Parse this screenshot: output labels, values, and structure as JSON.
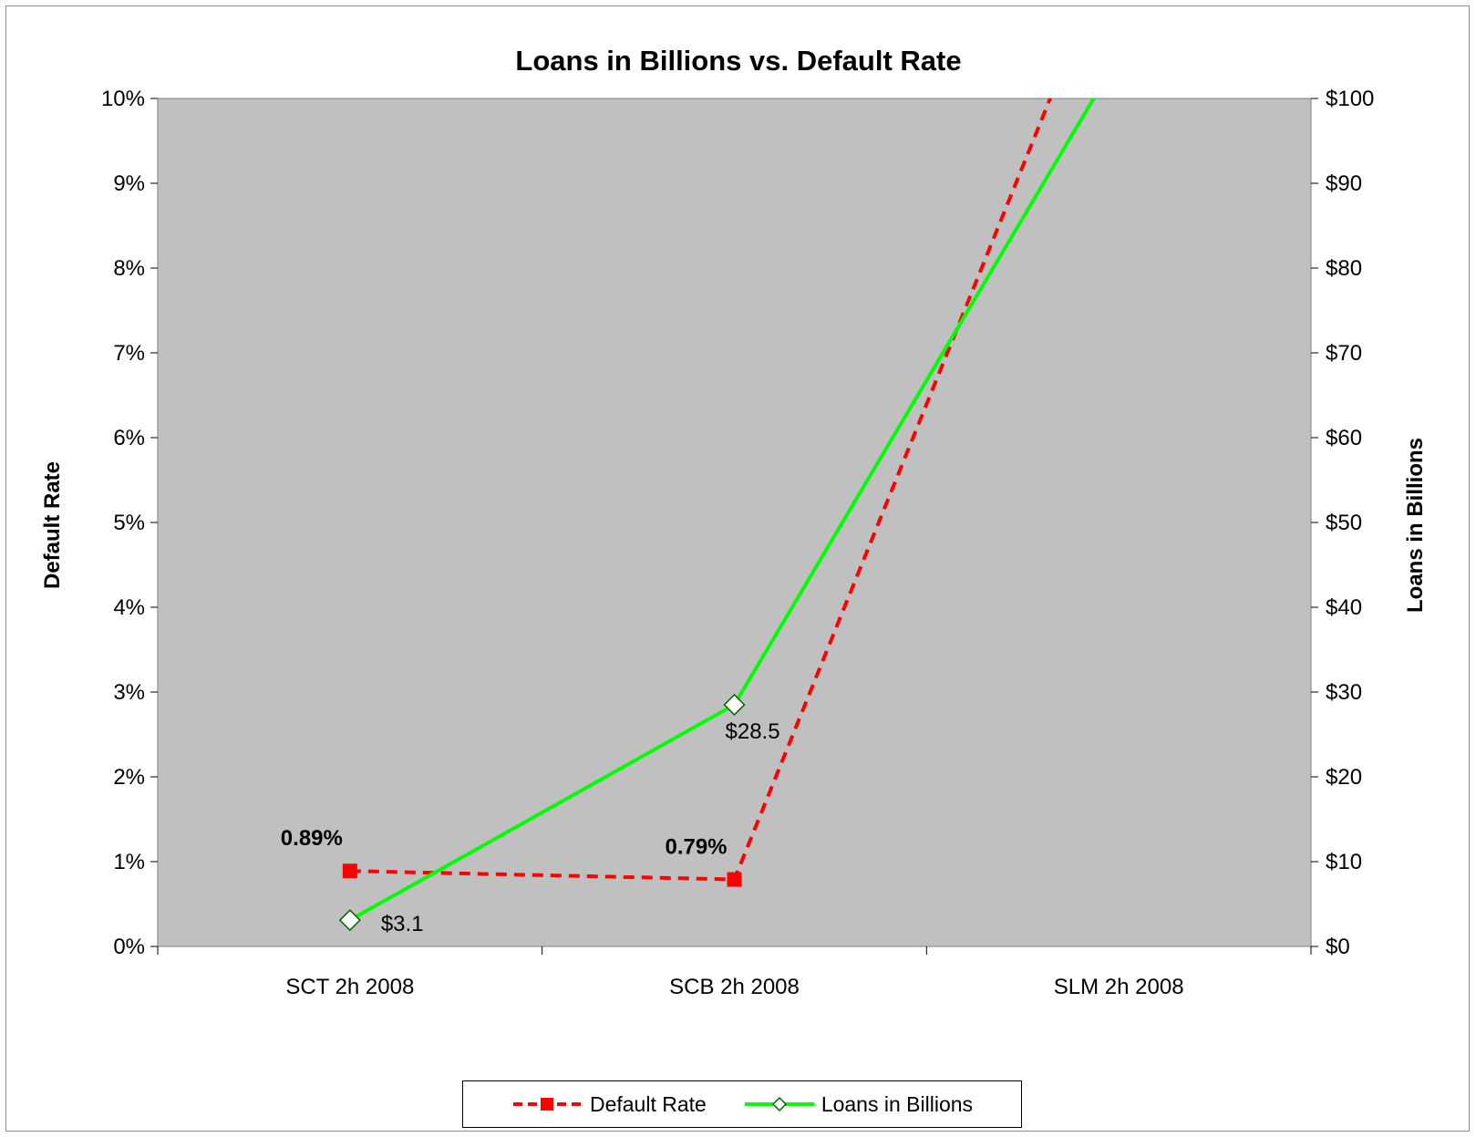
{
  "chart_data": {
    "type": "line",
    "title": "Loans in Billions vs. Default Rate",
    "categories": [
      "SCT 2h 2008",
      "SCB 2h 2008",
      "SLM 2h 2008"
    ],
    "y_left": {
      "label": "Default Rate",
      "ylim": [
        0,
        10
      ],
      "ticks": [
        "0%",
        "1%",
        "2%",
        "3%",
        "4%",
        "5%",
        "6%",
        "7%",
        "8%",
        "9%",
        "10%"
      ]
    },
    "y_right": {
      "label": "Loans in Billions",
      "ylim": [
        0,
        100
      ],
      "ticks": [
        "$0",
        "$10",
        "$20",
        "$30",
        "$40",
        "$50",
        "$60",
        "$70",
        "$80",
        "$90",
        "$100"
      ]
    },
    "series": [
      {
        "name": "Default Rate",
        "axis": "left",
        "values": [
          0.89,
          0.79,
          12.0
        ],
        "labels": [
          "0.89%",
          "0.79%",
          ""
        ],
        "color": "#ff0000",
        "style": "dashed",
        "marker": "square"
      },
      {
        "name": "Loans in Billions",
        "axis": "right",
        "values": [
          3.1,
          28.5,
          105.0
        ],
        "labels": [
          "$3.1",
          "$28.5",
          ""
        ],
        "color": "#00ff00",
        "style": "solid",
        "marker": "diamond-open"
      }
    ],
    "plot_background": "#c0c0c0",
    "grid": false,
    "legend_position": "bottom"
  }
}
